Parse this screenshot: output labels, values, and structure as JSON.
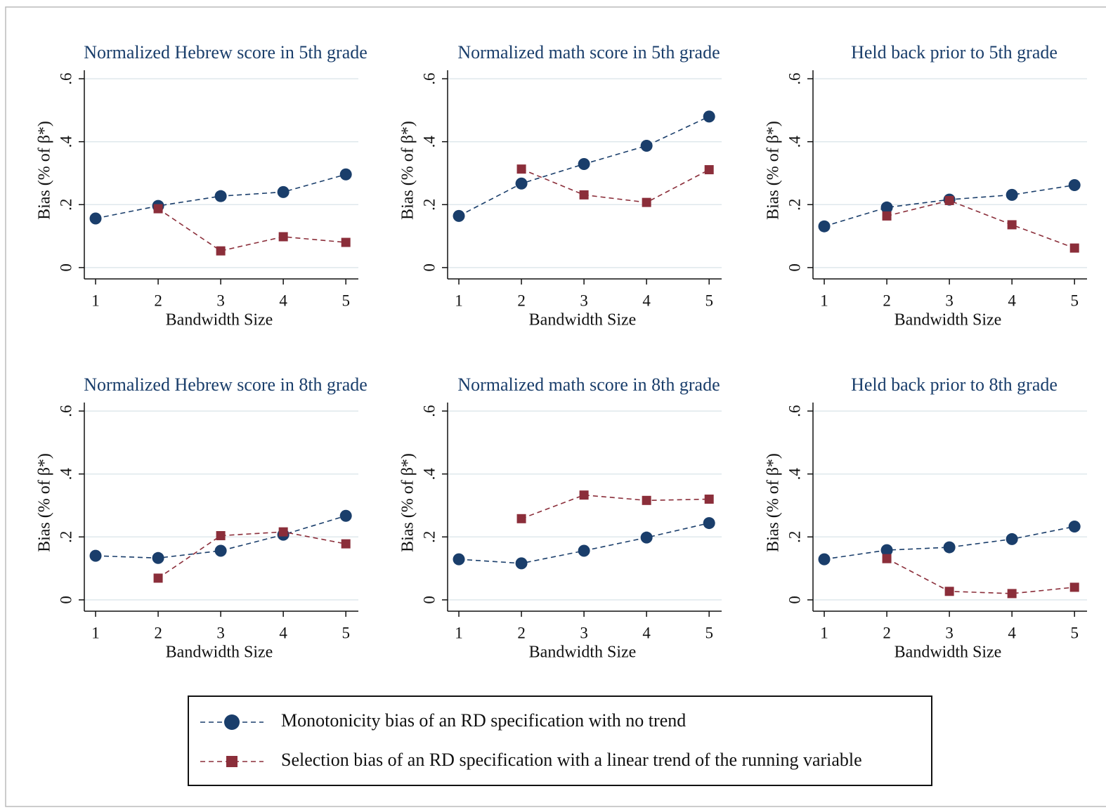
{
  "legend": {
    "entries": [
      {
        "name": "Monotonicity bias of an RD specification with no trend",
        "color": "#1a3e6b",
        "marker": "circle"
      },
      {
        "name": "Selection bias of an RD specification with a linear trend of the running variable",
        "color": "#8b2e3a",
        "marker": "square"
      }
    ]
  },
  "chart_data": [
    {
      "type": "line",
      "title": "Normalized Hebrew score in 5th grade",
      "xlabel": "Bandwidth Size",
      "ylabel": "Bias (% of β*)",
      "x": [
        1,
        2,
        3,
        4,
        5
      ],
      "xlim": [
        0.82,
        5.2
      ],
      "xticks": [
        1,
        2,
        3,
        4,
        5
      ],
      "ylim": [
        -0.036,
        0.627
      ],
      "yticks": [
        0,
        {
          "value": 0.2,
          "label": ".2"
        },
        {
          "value": 0.4,
          "label": ".4"
        },
        {
          "value": 0.6,
          "label": ".6"
        }
      ],
      "grid": true,
      "series": [
        {
          "values": [
            0.156,
            0.196,
            0.227,
            0.24,
            0.296
          ]
        },
        {
          "values": [
            null,
            0.187,
            0.053,
            0.098,
            0.08
          ]
        }
      ]
    },
    {
      "type": "line",
      "title": "Normalized math score in 5th grade",
      "xlabel": "Bandwidth Size",
      "ylabel": "Bias (% of β*)",
      "x": [
        1,
        2,
        3,
        4,
        5
      ],
      "xlim": [
        0.82,
        5.2
      ],
      "xticks": [
        1,
        2,
        3,
        4,
        5
      ],
      "ylim": [
        -0.036,
        0.627
      ],
      "yticks": [
        0,
        {
          "value": 0.2,
          "label": ".2"
        },
        {
          "value": 0.4,
          "label": ".4"
        },
        {
          "value": 0.6,
          "label": ".6"
        }
      ],
      "grid": true,
      "series": [
        {
          "values": [
            0.164,
            0.267,
            0.329,
            0.387,
            0.48
          ]
        },
        {
          "values": [
            null,
            0.313,
            0.231,
            0.207,
            0.311
          ]
        }
      ]
    },
    {
      "type": "line",
      "title": "Held back prior to 5th grade",
      "xlabel": "Bandwidth Size",
      "ylabel": "Bias (% of β*)",
      "x": [
        1,
        2,
        3,
        4,
        5
      ],
      "xlim": [
        0.82,
        5.2
      ],
      "xticks": [
        1,
        2,
        3,
        4,
        5
      ],
      "ylim": [
        -0.036,
        0.627
      ],
      "yticks": [
        0,
        {
          "value": 0.2,
          "label": ".2"
        },
        {
          "value": 0.4,
          "label": ".4"
        },
        {
          "value": 0.6,
          "label": ".6"
        }
      ],
      "grid": true,
      "series": [
        {
          "values": [
            0.131,
            0.191,
            0.216,
            0.231,
            0.262
          ]
        },
        {
          "values": [
            null,
            0.164,
            0.213,
            0.136,
            0.062
          ]
        }
      ]
    },
    {
      "type": "line",
      "title": "Normalized Hebrew score in 8th grade",
      "xlabel": "Bandwidth Size",
      "ylabel": "Bias (% of β*)",
      "x": [
        1,
        2,
        3,
        4,
        5
      ],
      "xlim": [
        0.82,
        5.2
      ],
      "xticks": [
        1,
        2,
        3,
        4,
        5
      ],
      "ylim": [
        -0.036,
        0.627
      ],
      "yticks": [
        0,
        {
          "value": 0.2,
          "label": ".2"
        },
        {
          "value": 0.4,
          "label": ".4"
        },
        {
          "value": 0.6,
          "label": ".6"
        }
      ],
      "grid": true,
      "series": [
        {
          "values": [
            0.14,
            0.133,
            0.156,
            0.207,
            0.267
          ]
        },
        {
          "values": [
            null,
            0.069,
            0.204,
            0.216,
            0.178
          ]
        }
      ]
    },
    {
      "type": "line",
      "title": "Normalized math score in 8th grade",
      "xlabel": "Bandwidth Size",
      "ylabel": "Bias (% of β*)",
      "x": [
        1,
        2,
        3,
        4,
        5
      ],
      "xlim": [
        0.82,
        5.2
      ],
      "xticks": [
        1,
        2,
        3,
        4,
        5
      ],
      "ylim": [
        -0.036,
        0.627
      ],
      "yticks": [
        0,
        {
          "value": 0.2,
          "label": ".2"
        },
        {
          "value": 0.4,
          "label": ".4"
        },
        {
          "value": 0.6,
          "label": ".6"
        }
      ],
      "grid": true,
      "series": [
        {
          "values": [
            0.129,
            0.116,
            0.156,
            0.198,
            0.244
          ]
        },
        {
          "values": [
            null,
            0.258,
            0.333,
            0.316,
            0.32
          ]
        }
      ]
    },
    {
      "type": "line",
      "title": "Held back prior to 8th grade",
      "xlabel": "Bandwidth Size",
      "ylabel": "Bias (% of β*)",
      "x": [
        1,
        2,
        3,
        4,
        5
      ],
      "xlim": [
        0.82,
        5.2
      ],
      "xticks": [
        1,
        2,
        3,
        4,
        5
      ],
      "ylim": [
        -0.036,
        0.627
      ],
      "yticks": [
        0,
        {
          "value": 0.2,
          "label": ".2"
        },
        {
          "value": 0.4,
          "label": ".4"
        },
        {
          "value": 0.6,
          "label": ".6"
        }
      ],
      "grid": true,
      "series": [
        {
          "values": [
            0.129,
            0.158,
            0.167,
            0.193,
            0.233
          ]
        },
        {
          "values": [
            null,
            0.131,
            0.027,
            0.02,
            0.04
          ]
        }
      ]
    }
  ]
}
